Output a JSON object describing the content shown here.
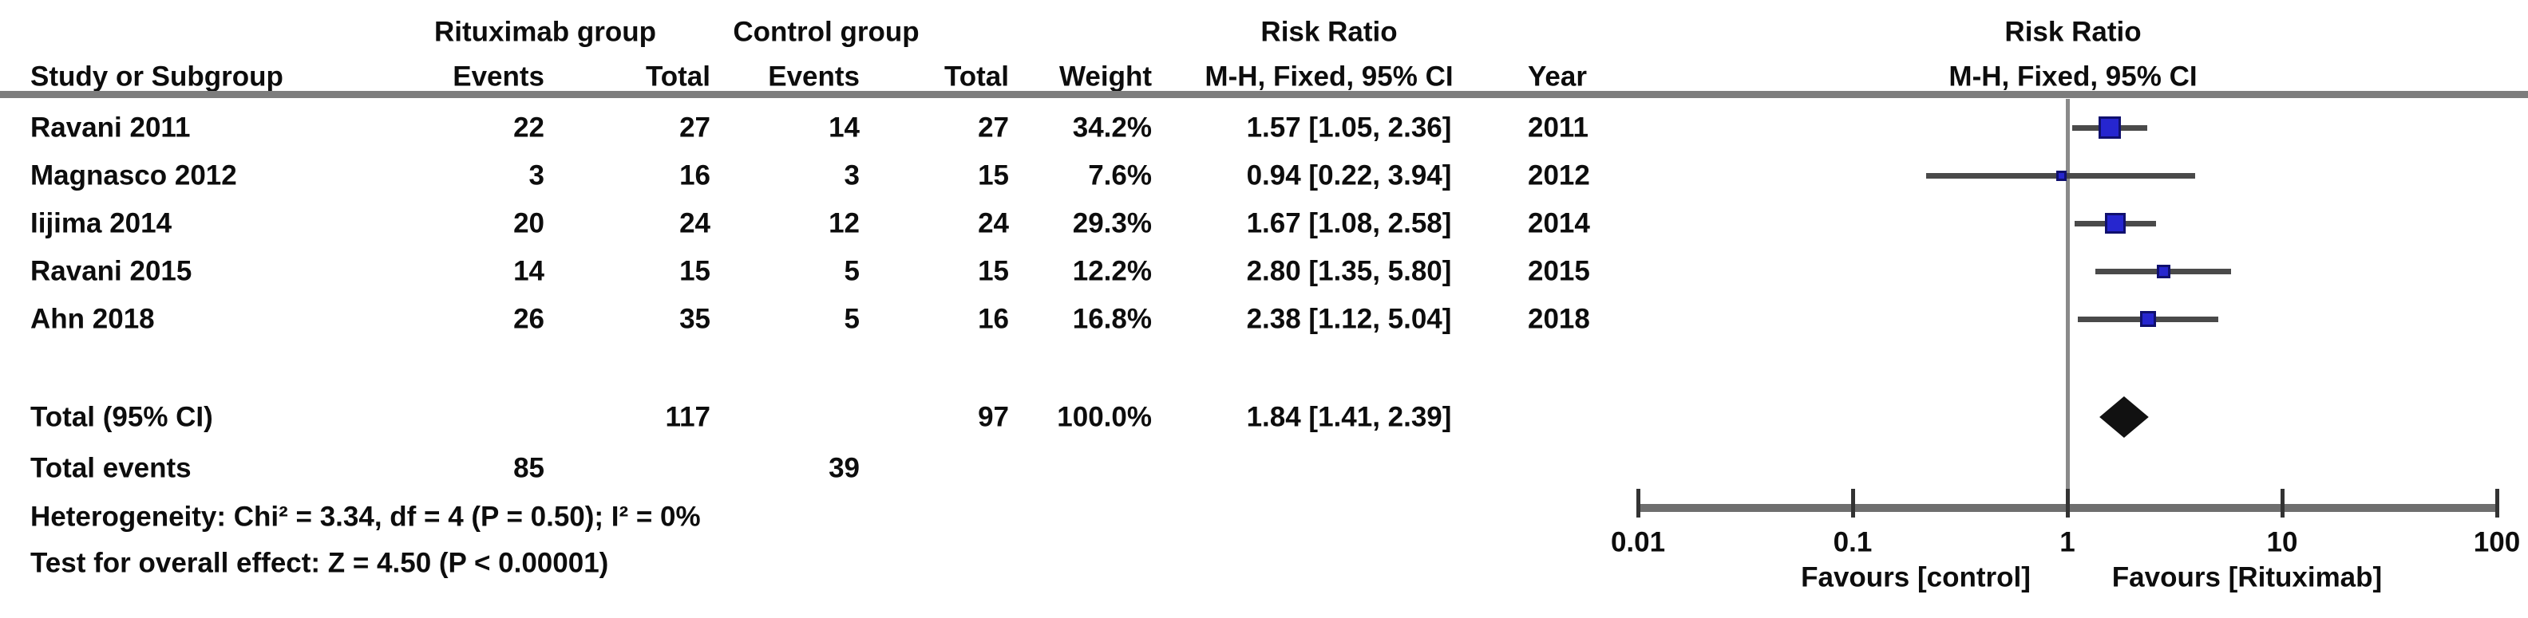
{
  "table": {
    "group_headers": {
      "rituximab": "Rituximab group",
      "control": "Control group"
    },
    "risk_ratio_header": "Risk Ratio",
    "method_header": "M-H, Fixed, 95% CI",
    "columns": {
      "study": "Study or Subgroup",
      "events": "Events",
      "total": "Total",
      "weight": "Weight",
      "year": "Year"
    },
    "studies": [
      {
        "name": "Ravani 2011",
        "events1": "22",
        "total1": "27",
        "events2": "14",
        "total2": "27",
        "weight": "34.2%",
        "rr_ci": "1.57 [1.05, 2.36]",
        "year": "2011"
      },
      {
        "name": "Magnasco 2012",
        "events1": "3",
        "total1": "16",
        "events2": "3",
        "total2": "15",
        "weight": "7.6%",
        "rr_ci": "0.94 [0.22, 3.94]",
        "year": "2012"
      },
      {
        "name": "Iijima 2014",
        "events1": "20",
        "total1": "24",
        "events2": "12",
        "total2": "24",
        "weight": "29.3%",
        "rr_ci": "1.67 [1.08, 2.58]",
        "year": "2014"
      },
      {
        "name": "Ravani 2015",
        "events1": "14",
        "total1": "15",
        "events2": "5",
        "total2": "15",
        "weight": "12.2%",
        "rr_ci": "2.80 [1.35, 5.80]",
        "year": "2015"
      },
      {
        "name": "Ahn 2018",
        "events1": "26",
        "total1": "35",
        "events2": "5",
        "total2": "16",
        "weight": "16.8%",
        "rr_ci": "2.38 [1.12, 5.04]",
        "year": "2018"
      }
    ],
    "total_row": {
      "label": "Total (95% CI)",
      "total1": "117",
      "total2": "97",
      "weight": "100.0%",
      "rr_ci": "1.84 [1.41, 2.39]"
    },
    "total_events_row": {
      "label": "Total events",
      "events1": "85",
      "events2": "39"
    },
    "heterogeneity": "Heterogeneity: Chi² = 3.34, df = 4 (P = 0.50); I² = 0%",
    "overall_effect": "Test for overall effect: Z = 4.50 (P < 0.00001)"
  },
  "plot": {
    "risk_ratio_header": "Risk Ratio",
    "method_header": "M-H, Fixed, 95% CI",
    "tick_labels": [
      "0.01",
      "0.1",
      "1",
      "10",
      "100"
    ],
    "favours_left": "Favours [control]",
    "favours_right": "Favours [Rituximab]",
    "square_color": "#2626cf",
    "square_border_color": "#10106e",
    "diamond_color": "#111111",
    "ci_line_color": "#4a4a4a"
  },
  "chart_data": {
    "type": "forest",
    "effect_measure": "Risk Ratio",
    "method": "M-H, Fixed, 95% CI",
    "x_scale": "log10",
    "xlim": [
      0.01,
      100
    ],
    "x_ticks": [
      0.01,
      0.1,
      1,
      10,
      100
    ],
    "null_line": 1,
    "studies": [
      {
        "label": "Ravani 2011",
        "rr": 1.57,
        "ci_low": 1.05,
        "ci_high": 2.36,
        "weight_pct": 34.2,
        "year": 2011
      },
      {
        "label": "Magnasco 2012",
        "rr": 0.94,
        "ci_low": 0.22,
        "ci_high": 3.94,
        "weight_pct": 7.6,
        "year": 2012
      },
      {
        "label": "Iijima 2014",
        "rr": 1.67,
        "ci_low": 1.08,
        "ci_high": 2.58,
        "weight_pct": 29.3,
        "year": 2014
      },
      {
        "label": "Ravani 2015",
        "rr": 2.8,
        "ci_low": 1.35,
        "ci_high": 5.8,
        "weight_pct": 12.2,
        "year": 2015
      },
      {
        "label": "Ahn 2018",
        "rr": 2.38,
        "ci_low": 1.12,
        "ci_high": 5.04,
        "weight_pct": 16.8,
        "year": 2018
      }
    ],
    "total": {
      "label": "Total (95% CI)",
      "rr": 1.84,
      "ci_low": 1.41,
      "ci_high": 2.39,
      "weight_pct": 100.0
    },
    "heterogeneity": {
      "chi2": 3.34,
      "df": 4,
      "p": 0.5,
      "i2_pct": 0
    },
    "overall_effect": {
      "z": 4.5,
      "p": "< 0.00001"
    },
    "favours_left": "Favours [control]",
    "favours_right": "Favours [Rituximab]"
  }
}
